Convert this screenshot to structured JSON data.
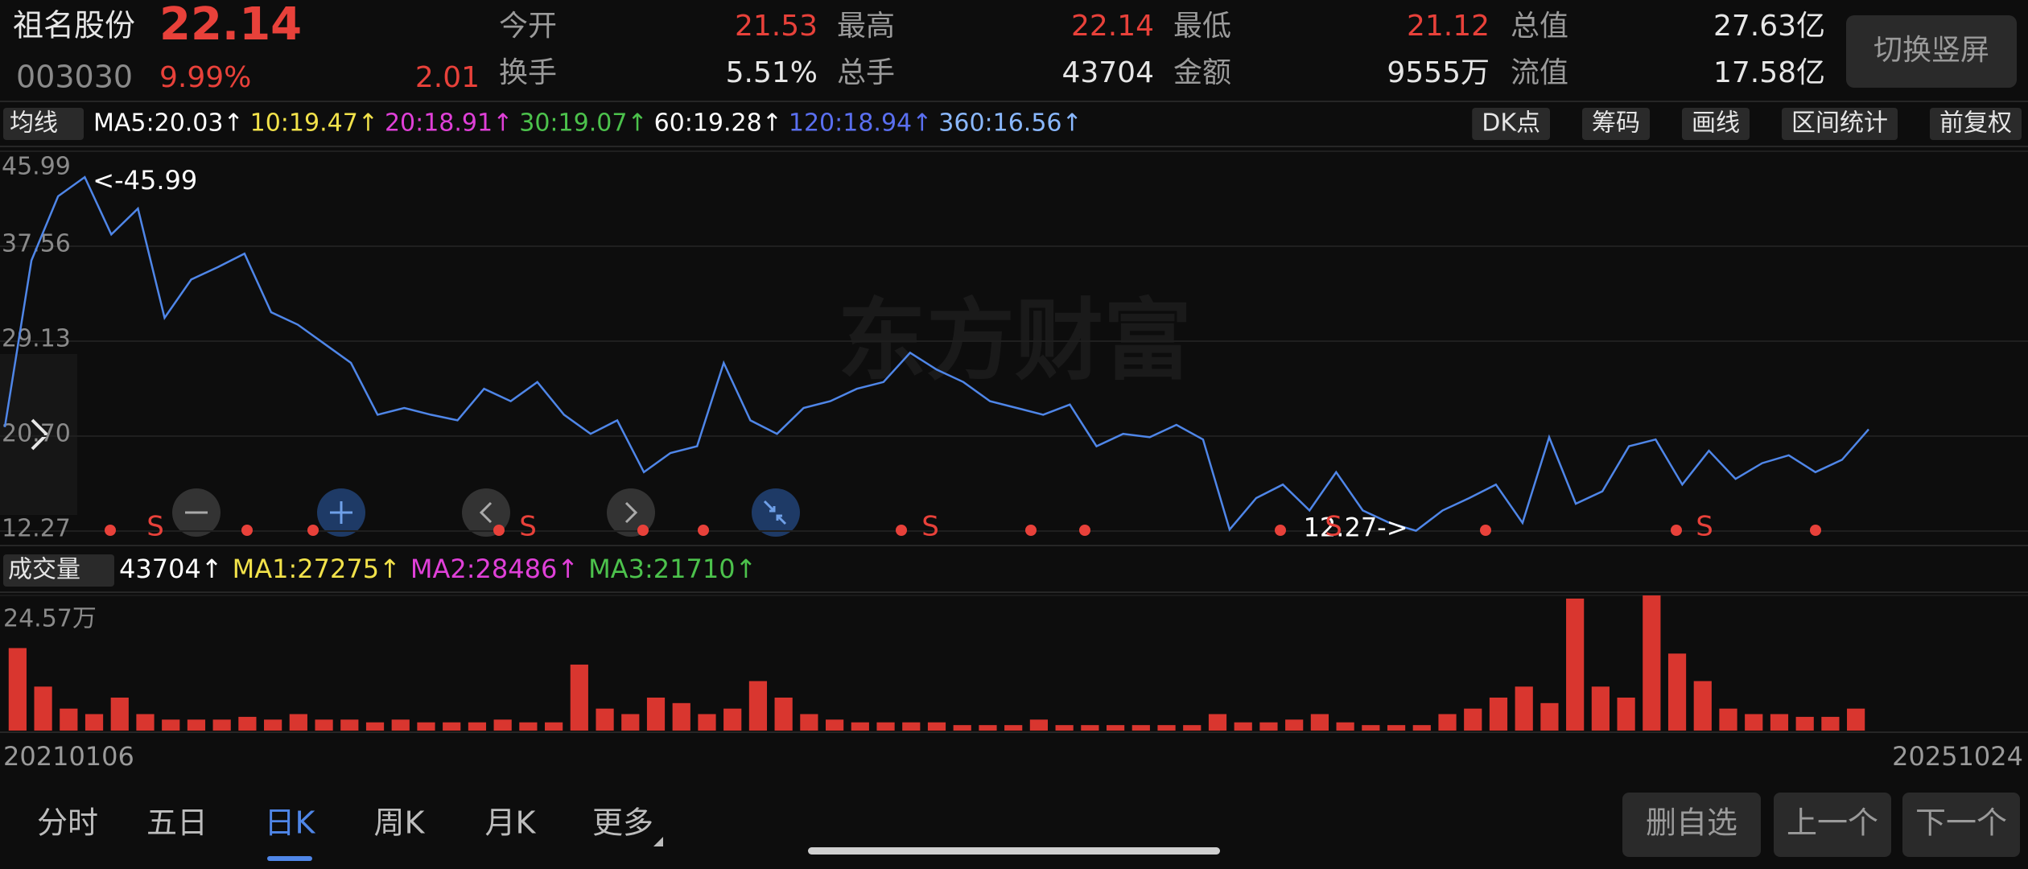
{
  "header": {
    "name": "祖名股份",
    "price": "22.14",
    "code": "003030",
    "change_pct": "9.99%",
    "change": "2.01",
    "stats": [
      {
        "label": "今开",
        "value": "21.53",
        "color": "#e8413a"
      },
      {
        "label": "最高",
        "value": "22.14",
        "color": "#e8413a"
      },
      {
        "label": "最低",
        "value": "21.12",
        "color": "#e8413a"
      },
      {
        "label": "总值",
        "value": "27.63亿",
        "color": "#e6e6e6"
      },
      {
        "label": "换手",
        "value": "5.51%",
        "color": "#e6e6e6"
      },
      {
        "label": "总手",
        "value": "43704",
        "color": "#e6e6e6"
      },
      {
        "label": "金额",
        "value": "9555万",
        "color": "#e6e6e6"
      },
      {
        "label": "流值",
        "value": "17.58亿",
        "color": "#e6e6e6"
      }
    ],
    "button": "切换竖屏"
  },
  "ma_bar": {
    "selector": "均线",
    "items": [
      {
        "text": "MA5:20.03↑",
        "color": "#ffffff"
      },
      {
        "text": "10:19.47↑",
        "color": "#f2e24a"
      },
      {
        "text": "20:18.91↑",
        "color": "#e040d8"
      },
      {
        "text": "30:19.07↑",
        "color": "#4cc24c"
      },
      {
        "text": "60:19.28↑",
        "color": "#ffffff"
      },
      {
        "text": "120:18.94↑",
        "color": "#5a6ff0"
      },
      {
        "text": "360:16.56↑",
        "color": "#8ab8ff"
      }
    ],
    "tools": [
      "DK点",
      "筹码",
      "画线",
      "区间统计",
      "前复权"
    ]
  },
  "price_chart": {
    "type": "line",
    "color": "#4f86e8",
    "ylim": [
      12.27,
      45.99
    ],
    "yticks": [
      12.27,
      {
        "value": 20.7,
        "label": "20.70"
      },
      29.13,
      37.56,
      45.99
    ],
    "x_labels": [
      "20210106",
      "20251024"
    ],
    "max_label": "<-45.99",
    "min_label": "12.27->",
    "watermark": "东方财富",
    "signal_label": "S",
    "values": [
      21.5,
      36.3,
      42.0,
      43.7,
      38.6,
      40.9,
      31.2,
      34.6,
      35.7,
      36.9,
      31.7,
      30.6,
      28.9,
      27.2,
      22.6,
      23.2,
      22.6,
      22.1,
      24.9,
      23.8,
      25.5,
      22.6,
      20.9,
      22.1,
      17.5,
      19.2,
      19.8,
      27.2,
      22.1,
      20.9,
      23.2,
      23.8,
      24.9,
      25.5,
      28.1,
      26.6,
      25.5,
      23.8,
      23.2,
      22.6,
      23.5,
      19.8,
      20.9,
      20.6,
      21.7,
      20.4,
      12.4,
      15.2,
      16.4,
      14.1,
      17.5,
      14.1,
      13.0,
      12.3,
      14.1,
      15.2,
      16.4,
      13.0,
      20.6,
      14.7,
      15.8,
      19.8,
      20.4,
      16.4,
      19.4,
      16.9,
      18.3,
      19.0,
      17.5,
      18.6,
      21.3
    ]
  },
  "volume_chart": {
    "type": "bar",
    "label": "成交量",
    "items": [
      {
        "text": "43704↑",
        "color": "#ffffff"
      },
      {
        "text": "MA1:27275↑",
        "color": "#f2e24a"
      },
      {
        "text": "MA2:28486↑",
        "color": "#e040d8"
      },
      {
        "text": "MA3:21710↑",
        "color": "#4cc24c"
      }
    ],
    "color": "#d9362f",
    "ylim": [
      0,
      24.57
    ],
    "yticks": [
      {
        "value": 24.57,
        "label": "24.57万"
      }
    ],
    "values": [
      15,
      8,
      4,
      3,
      6,
      3,
      2,
      2,
      2,
      2.5,
      2,
      3,
      2,
      2,
      1.5,
      2,
      1.5,
      1.5,
      1.5,
      2,
      1.5,
      1.5,
      12,
      4,
      3,
      6,
      5,
      3,
      4,
      9,
      6,
      3,
      2,
      1.5,
      1.5,
      1.5,
      1.5,
      1,
      1,
      1,
      2,
      1,
      1,
      1,
      1,
      1,
      1,
      3,
      1.5,
      1.5,
      2,
      3,
      1.5,
      1,
      1,
      1,
      3,
      4,
      6,
      8,
      5,
      24,
      8,
      6,
      24.57,
      14,
      9,
      4,
      3,
      3,
      2.5,
      2.5,
      4
    ]
  },
  "tabs": {
    "items": [
      "分时",
      "五日",
      "日K",
      "周K",
      "月K",
      "更多"
    ],
    "active": 2
  },
  "buttons": [
    "删自选",
    "上一个",
    "下一个"
  ]
}
